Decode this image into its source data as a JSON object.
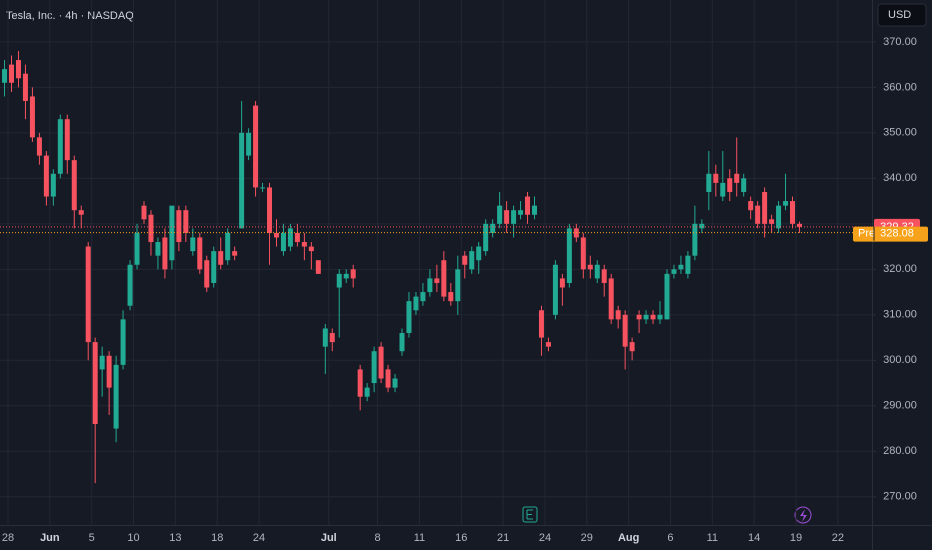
{
  "chart_data": {
    "type": "candlestick",
    "title": "Tesla, Inc. · 4h · NASDAQ",
    "currency": "USD",
    "up_color": "#22ab94",
    "down_color": "#f7525f",
    "grid": true,
    "open": [
      361,
      365,
      366,
      363,
      358,
      349,
      345,
      336,
      341,
      353,
      344,
      333,
      325,
      304,
      298,
      301,
      285,
      299,
      312,
      321,
      334,
      332,
      323,
      327,
      322,
      333,
      333,
      324,
      327,
      322,
      317,
      324,
      322,
      324,
      329,
      345,
      356,
      338,
      338,
      328,
      324,
      325,
      328,
      326,
      325,
      322,
      303,
      306,
      316,
      318,
      320,
      298,
      292,
      295,
      303,
      298,
      294,
      302,
      306,
      311,
      313,
      315,
      318,
      322,
      315,
      313,
      323,
      320,
      322,
      324,
      328,
      330,
      333,
      330,
      332,
      336,
      332,
      311,
      304,
      310,
      318,
      317,
      329,
      327,
      321,
      318,
      320,
      318,
      311,
      310,
      304,
      310,
      309,
      310,
      309,
      309,
      319,
      320,
      319,
      323,
      329,
      337,
      341,
      336,
      340,
      341,
      337,
      335,
      334,
      337,
      331,
      329,
      334,
      335,
      330
    ],
    "high": [
      366,
      367,
      368,
      365,
      360,
      350,
      346,
      342,
      354,
      354,
      345,
      334,
      326,
      305,
      303,
      302,
      301,
      311,
      322,
      330,
      335,
      333,
      327,
      329,
      334,
      334,
      334,
      329,
      328,
      323,
      325,
      327,
      329,
      325,
      357,
      351,
      357,
      339,
      339,
      331,
      330,
      330,
      330,
      328,
      326,
      322,
      308,
      307,
      320,
      320,
      321,
      299,
      295,
      303,
      304,
      299,
      297,
      307,
      315,
      315,
      317,
      320,
      321,
      324,
      317,
      323,
      324,
      325,
      326,
      331,
      331,
      337,
      335,
      334,
      335,
      337,
      336,
      312,
      305,
      322,
      319,
      330,
      330,
      328,
      323,
      322,
      321,
      319,
      312,
      311,
      305,
      311,
      311,
      311,
      313,
      320,
      321,
      323,
      324,
      334,
      331,
      346,
      343,
      346,
      342,
      349,
      341,
      336,
      335,
      338,
      332,
      335,
      341,
      336,
      330.5
    ],
    "low": [
      358,
      359,
      360,
      353,
      348,
      343,
      334,
      334,
      340,
      341,
      329,
      329,
      300,
      273,
      292,
      288,
      282,
      298,
      311,
      320,
      330,
      323,
      320,
      318,
      320,
      324,
      326,
      323,
      319,
      315,
      316,
      320,
      321,
      322,
      329,
      344,
      336,
      337,
      321,
      325,
      323,
      324,
      325,
      322,
      320,
      319,
      297,
      302,
      305,
      317,
      316,
      289,
      291,
      293,
      295,
      293,
      293,
      301,
      305,
      310,
      312,
      314,
      315,
      313,
      312,
      310,
      318,
      319,
      319,
      323,
      327,
      329,
      328,
      327,
      331,
      330,
      331,
      301,
      302,
      309,
      312,
      316,
      326,
      318,
      318,
      317,
      314,
      308,
      307,
      298,
      300,
      306,
      308,
      308,
      308,
      309,
      318,
      319,
      318,
      322,
      328,
      333,
      336,
      335,
      335,
      336,
      336,
      331,
      329,
      327,
      328,
      328,
      333,
      329,
      328
    ],
    "close": [
      364,
      361,
      362,
      357,
      349,
      345,
      336,
      341,
      353,
      344,
      333,
      332,
      304,
      286,
      301,
      294,
      299,
      309,
      321,
      328,
      331,
      326,
      326,
      320,
      334,
      326,
      328,
      327,
      320,
      316,
      324,
      321,
      328,
      323,
      350,
      350,
      338,
      338,
      328,
      327,
      328,
      329,
      326,
      325,
      324,
      319,
      307,
      304,
      319,
      319,
      318,
      292,
      294,
      302,
      296,
      294,
      296,
      306,
      313,
      314,
      315,
      318,
      317,
      314,
      313,
      320,
      321,
      324,
      325,
      330,
      330,
      334,
      330,
      333,
      333,
      332,
      334,
      305,
      303,
      321,
      316,
      329,
      327,
      320,
      320,
      321,
      317,
      309,
      309,
      303,
      302,
      309,
      310,
      309,
      310,
      319,
      320,
      321,
      323,
      330,
      330,
      341,
      339,
      339,
      337,
      339,
      340,
      333,
      330,
      330,
      330,
      334,
      335,
      330,
      329.32
    ],
    "xlim": [
      -0.65,
      124.4
    ],
    "ylim": [
      263.8,
      379.2
    ],
    "xticks": [
      {
        "value": 0.5,
        "label": "28"
      },
      {
        "value": 6.5,
        "label": "Jun"
      },
      {
        "value": 12.5,
        "label": "5"
      },
      {
        "value": 18.5,
        "label": "10"
      },
      {
        "value": 24.5,
        "label": "13"
      },
      {
        "value": 30.5,
        "label": "18"
      },
      {
        "value": 36.5,
        "label": "24"
      },
      {
        "value": 46.5,
        "label": "Jul"
      },
      {
        "value": 53.5,
        "label": "8"
      },
      {
        "value": 59.5,
        "label": "11"
      },
      {
        "value": 65.5,
        "label": "16"
      },
      {
        "value": 71.5,
        "label": "21"
      },
      {
        "value": 77.5,
        "label": "24"
      },
      {
        "value": 83.5,
        "label": "29"
      },
      {
        "value": 89.5,
        "label": "Aug"
      },
      {
        "value": 95.5,
        "label": "6"
      },
      {
        "value": 101.5,
        "label": "11"
      },
      {
        "value": 107.5,
        "label": "14"
      },
      {
        "value": 113.5,
        "label": "19"
      },
      {
        "value": 119.5,
        "label": "22"
      }
    ],
    "yticks": [
      {
        "value": 270,
        "label": "270.00"
      },
      {
        "value": 280,
        "label": "280.00"
      },
      {
        "value": 290,
        "label": "290.00"
      },
      {
        "value": 300,
        "label": "300.00"
      },
      {
        "value": 310,
        "label": "310.00"
      },
      {
        "value": 320,
        "label": "320.00"
      },
      {
        "value": 330,
        "label": "330.00"
      },
      {
        "value": 340,
        "label": "340.00"
      },
      {
        "value": 350,
        "label": "350.00"
      },
      {
        "value": 360,
        "label": "360.00"
      },
      {
        "value": 370,
        "label": "370.00"
      }
    ],
    "last_price": 329.32,
    "premarket": {
      "label": "Pre",
      "value": 328.08,
      "color": "#f7a21b"
    }
  }
}
